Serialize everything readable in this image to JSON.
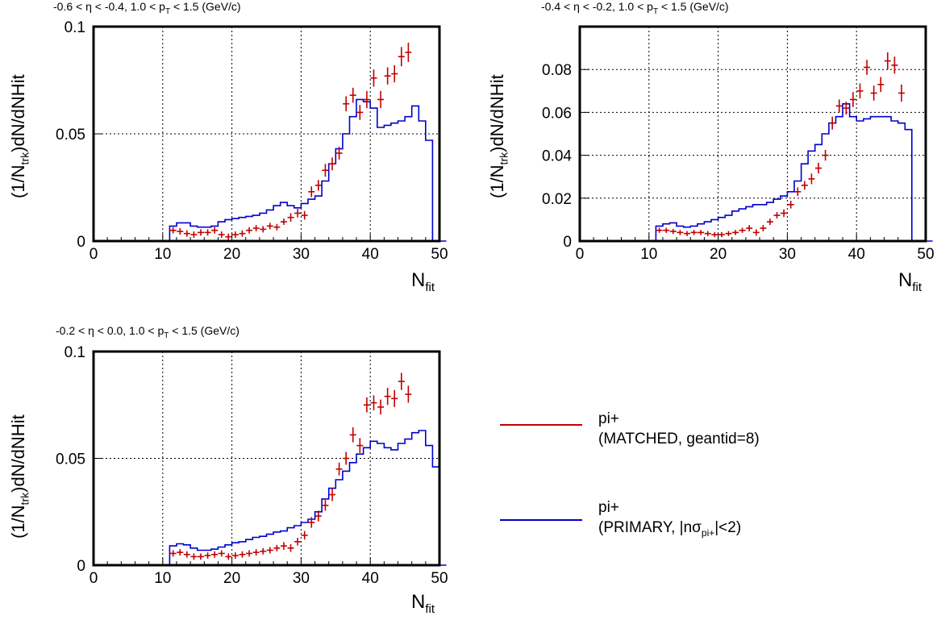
{
  "axis_labels": {
    "ylabel_pre": "(1/N",
    "ylabel_sub": "trk",
    "ylabel_post": ")dN/dNHit",
    "xlabel_main": "N",
    "xlabel_sub": "fit"
  },
  "legend": {
    "matched": {
      "line1": "pi+",
      "line2": "(MATCHED, geantid=8)",
      "color": "#c00000"
    },
    "primary": {
      "line1": "pi+",
      "line2_pre": "(PRIMARY, |nσ",
      "line2_sub": "pi+",
      "line2_post": "|<2)",
      "color": "#0000cc"
    }
  },
  "chart_data": [
    {
      "type": "histogram_with_points",
      "title_pre": "-0.6 < η < -0.4, 1.0 < p",
      "title_sub": "T",
      "title_post": " < 1.5 (GeV/c)",
      "xlim": [
        0,
        50
      ],
      "ylim": [
        0,
        0.1
      ],
      "xticks": [
        "0",
        "10",
        "20",
        "30",
        "40",
        "50"
      ],
      "yticks": [
        {
          "v": 0,
          "label": "0"
        },
        {
          "v": 0.05,
          "label": "0.05"
        },
        {
          "v": 0.1,
          "label": "0.1"
        }
      ],
      "grid": true,
      "primary_hist": [
        0,
        0,
        0,
        0,
        0,
        0,
        0,
        0,
        0,
        0,
        0,
        0.007,
        0.0085,
        0.0085,
        0.007,
        0.0065,
        0.0065,
        0.007,
        0.009,
        0.01,
        0.0105,
        0.011,
        0.0115,
        0.012,
        0.013,
        0.0145,
        0.0165,
        0.018,
        0.0165,
        0.0155,
        0.0175,
        0.0195,
        0.021,
        0.028,
        0.036,
        0.043,
        0.05,
        0.058,
        0.066,
        0.065,
        0.062,
        0.053,
        0.054,
        0.055,
        0.056,
        0.058,
        0.063,
        0.056,
        0.047,
        0,
        0
      ],
      "matched_points": [
        {
          "x": 12,
          "y": 0.005,
          "e": 0.0015
        },
        {
          "x": 13,
          "y": 0.0045,
          "e": 0.0015
        },
        {
          "x": 14,
          "y": 0.0035,
          "e": 0.0015
        },
        {
          "x": 15,
          "y": 0.003,
          "e": 0.0015
        },
        {
          "x": 16,
          "y": 0.004,
          "e": 0.0015
        },
        {
          "x": 17,
          "y": 0.004,
          "e": 0.0015
        },
        {
          "x": 18,
          "y": 0.005,
          "e": 0.0015
        },
        {
          "x": 19,
          "y": 0.003,
          "e": 0.0015
        },
        {
          "x": 20,
          "y": 0.002,
          "e": 0.0015
        },
        {
          "x": 21,
          "y": 0.003,
          "e": 0.0015
        },
        {
          "x": 22,
          "y": 0.0035,
          "e": 0.0015
        },
        {
          "x": 23,
          "y": 0.005,
          "e": 0.0015
        },
        {
          "x": 24,
          "y": 0.006,
          "e": 0.0015
        },
        {
          "x": 25,
          "y": 0.0055,
          "e": 0.0015
        },
        {
          "x": 26,
          "y": 0.007,
          "e": 0.0015
        },
        {
          "x": 27,
          "y": 0.0065,
          "e": 0.0015
        },
        {
          "x": 28,
          "y": 0.009,
          "e": 0.0015
        },
        {
          "x": 29,
          "y": 0.011,
          "e": 0.002
        },
        {
          "x": 30,
          "y": 0.013,
          "e": 0.002
        },
        {
          "x": 31,
          "y": 0.012,
          "e": 0.002
        },
        {
          "x": 32,
          "y": 0.023,
          "e": 0.0025
        },
        {
          "x": 33,
          "y": 0.026,
          "e": 0.0025
        },
        {
          "x": 34,
          "y": 0.033,
          "e": 0.003
        },
        {
          "x": 35,
          "y": 0.036,
          "e": 0.003
        },
        {
          "x": 36,
          "y": 0.041,
          "e": 0.003
        },
        {
          "x": 37,
          "y": 0.064,
          "e": 0.0035
        },
        {
          "x": 38,
          "y": 0.068,
          "e": 0.0035
        },
        {
          "x": 39,
          "y": 0.06,
          "e": 0.0035
        },
        {
          "x": 40,
          "y": 0.066,
          "e": 0.004
        },
        {
          "x": 41,
          "y": 0.076,
          "e": 0.004
        },
        {
          "x": 42,
          "y": 0.066,
          "e": 0.004
        },
        {
          "x": 43,
          "y": 0.077,
          "e": 0.004
        },
        {
          "x": 44,
          "y": 0.078,
          "e": 0.004
        },
        {
          "x": 45,
          "y": 0.086,
          "e": 0.0045
        },
        {
          "x": 46,
          "y": 0.088,
          "e": 0.0045
        }
      ]
    },
    {
      "type": "histogram_with_points",
      "title_pre": "-0.4 < η < -0.2, 1.0 < p",
      "title_sub": "T",
      "title_post": " < 1.5 (GeV/c)",
      "xlim": [
        0,
        50
      ],
      "ylim": [
        0,
        0.1
      ],
      "xticks": [
        "0",
        "10",
        "20",
        "30",
        "40",
        "50"
      ],
      "yticks": [
        {
          "v": 0,
          "label": "0"
        },
        {
          "v": 0.02,
          "label": "0.02"
        },
        {
          "v": 0.04,
          "label": "0.04"
        },
        {
          "v": 0.06,
          "label": "0.06"
        },
        {
          "v": 0.08,
          "label": "0.08"
        }
      ],
      "grid": true,
      "primary_hist": [
        0,
        0,
        0,
        0,
        0,
        0,
        0,
        0,
        0,
        0,
        0,
        0.007,
        0.008,
        0.0085,
        0.007,
        0.0065,
        0.007,
        0.008,
        0.009,
        0.01,
        0.011,
        0.012,
        0.014,
        0.015,
        0.016,
        0.017,
        0.017,
        0.018,
        0.0195,
        0.021,
        0.023,
        0.028,
        0.036,
        0.042,
        0.045,
        0.05,
        0.055,
        0.058,
        0.064,
        0.058,
        0.056,
        0.057,
        0.058,
        0.058,
        0.058,
        0.056,
        0.055,
        0.052,
        0,
        0,
        0
      ],
      "matched_points": [
        {
          "x": 12,
          "y": 0.005,
          "e": 0.0012
        },
        {
          "x": 13,
          "y": 0.005,
          "e": 0.0012
        },
        {
          "x": 14,
          "y": 0.0045,
          "e": 0.0012
        },
        {
          "x": 15,
          "y": 0.004,
          "e": 0.0012
        },
        {
          "x": 16,
          "y": 0.0035,
          "e": 0.0012
        },
        {
          "x": 17,
          "y": 0.004,
          "e": 0.0012
        },
        {
          "x": 18,
          "y": 0.004,
          "e": 0.0012
        },
        {
          "x": 19,
          "y": 0.0035,
          "e": 0.0012
        },
        {
          "x": 20,
          "y": 0.003,
          "e": 0.0012
        },
        {
          "x": 21,
          "y": 0.003,
          "e": 0.0012
        },
        {
          "x": 22,
          "y": 0.0035,
          "e": 0.0012
        },
        {
          "x": 23,
          "y": 0.004,
          "e": 0.0012
        },
        {
          "x": 24,
          "y": 0.005,
          "e": 0.0012
        },
        {
          "x": 25,
          "y": 0.006,
          "e": 0.0015
        },
        {
          "x": 26,
          "y": 0.004,
          "e": 0.0015
        },
        {
          "x": 27,
          "y": 0.006,
          "e": 0.0015
        },
        {
          "x": 28,
          "y": 0.009,
          "e": 0.0015
        },
        {
          "x": 29,
          "y": 0.012,
          "e": 0.0015
        },
        {
          "x": 30,
          "y": 0.013,
          "e": 0.0018
        },
        {
          "x": 31,
          "y": 0.017,
          "e": 0.0018
        },
        {
          "x": 32,
          "y": 0.023,
          "e": 0.002
        },
        {
          "x": 33,
          "y": 0.026,
          "e": 0.002
        },
        {
          "x": 34,
          "y": 0.029,
          "e": 0.0025
        },
        {
          "x": 35,
          "y": 0.034,
          "e": 0.0025
        },
        {
          "x": 36,
          "y": 0.04,
          "e": 0.0025
        },
        {
          "x": 37,
          "y": 0.055,
          "e": 0.003
        },
        {
          "x": 38,
          "y": 0.063,
          "e": 0.003
        },
        {
          "x": 39,
          "y": 0.062,
          "e": 0.003
        },
        {
          "x": 40,
          "y": 0.066,
          "e": 0.0035
        },
        {
          "x": 41,
          "y": 0.07,
          "e": 0.0035
        },
        {
          "x": 42,
          "y": 0.081,
          "e": 0.0035
        },
        {
          "x": 43,
          "y": 0.069,
          "e": 0.0035
        },
        {
          "x": 44,
          "y": 0.073,
          "e": 0.0035
        },
        {
          "x": 45,
          "y": 0.084,
          "e": 0.004
        },
        {
          "x": 46,
          "y": 0.082,
          "e": 0.004
        },
        {
          "x": 47,
          "y": 0.069,
          "e": 0.004
        }
      ]
    },
    {
      "type": "histogram_with_points",
      "title_pre": "-0.2 < η < 0.0, 1.0 < p",
      "title_sub": "T",
      "title_post": " < 1.5 (GeV/c)",
      "xlim": [
        0,
        50
      ],
      "ylim": [
        0,
        0.1
      ],
      "xticks": [
        "0",
        "10",
        "20",
        "30",
        "40",
        "50"
      ],
      "yticks": [
        {
          "v": 0,
          "label": "0"
        },
        {
          "v": 0.05,
          "label": "0.05"
        },
        {
          "v": 0.1,
          "label": "0.1"
        }
      ],
      "grid": true,
      "primary_hist": [
        0,
        0,
        0,
        0,
        0,
        0,
        0,
        0,
        0,
        0,
        0,
        0.009,
        0.01,
        0.0095,
        0.008,
        0.007,
        0.007,
        0.0075,
        0.0085,
        0.0095,
        0.0105,
        0.011,
        0.012,
        0.013,
        0.0135,
        0.0145,
        0.0155,
        0.016,
        0.0175,
        0.0185,
        0.02,
        0.0215,
        0.025,
        0.031,
        0.036,
        0.04,
        0.044,
        0.048,
        0.052,
        0.055,
        0.058,
        0.057,
        0.055,
        0.054,
        0.057,
        0.059,
        0.062,
        0.063,
        0.056,
        0.046,
        0
      ],
      "matched_points": [
        {
          "x": 12,
          "y": 0.0055,
          "e": 0.0015
        },
        {
          "x": 13,
          "y": 0.006,
          "e": 0.0015
        },
        {
          "x": 14,
          "y": 0.005,
          "e": 0.0015
        },
        {
          "x": 15,
          "y": 0.004,
          "e": 0.0015
        },
        {
          "x": 16,
          "y": 0.004,
          "e": 0.0015
        },
        {
          "x": 17,
          "y": 0.0045,
          "e": 0.0015
        },
        {
          "x": 18,
          "y": 0.005,
          "e": 0.0015
        },
        {
          "x": 19,
          "y": 0.0055,
          "e": 0.0015
        },
        {
          "x": 20,
          "y": 0.004,
          "e": 0.0015
        },
        {
          "x": 21,
          "y": 0.0045,
          "e": 0.0015
        },
        {
          "x": 22,
          "y": 0.005,
          "e": 0.0015
        },
        {
          "x": 23,
          "y": 0.0055,
          "e": 0.0015
        },
        {
          "x": 24,
          "y": 0.006,
          "e": 0.0015
        },
        {
          "x": 25,
          "y": 0.0065,
          "e": 0.0015
        },
        {
          "x": 26,
          "y": 0.007,
          "e": 0.0015
        },
        {
          "x": 27,
          "y": 0.008,
          "e": 0.0015
        },
        {
          "x": 28,
          "y": 0.009,
          "e": 0.0018
        },
        {
          "x": 29,
          "y": 0.008,
          "e": 0.0018
        },
        {
          "x": 30,
          "y": 0.011,
          "e": 0.0018
        },
        {
          "x": 31,
          "y": 0.014,
          "e": 0.002
        },
        {
          "x": 32,
          "y": 0.02,
          "e": 0.0025
        },
        {
          "x": 33,
          "y": 0.023,
          "e": 0.0025
        },
        {
          "x": 34,
          "y": 0.028,
          "e": 0.0025
        },
        {
          "x": 35,
          "y": 0.033,
          "e": 0.003
        },
        {
          "x": 36,
          "y": 0.045,
          "e": 0.003
        },
        {
          "x": 37,
          "y": 0.05,
          "e": 0.003
        },
        {
          "x": 38,
          "y": 0.061,
          "e": 0.0035
        },
        {
          "x": 39,
          "y": 0.056,
          "e": 0.0035
        },
        {
          "x": 40,
          "y": 0.075,
          "e": 0.0035
        },
        {
          "x": 41,
          "y": 0.076,
          "e": 0.0035
        },
        {
          "x": 42,
          "y": 0.074,
          "e": 0.0035
        },
        {
          "x": 43,
          "y": 0.079,
          "e": 0.004
        },
        {
          "x": 44,
          "y": 0.078,
          "e": 0.004
        },
        {
          "x": 45,
          "y": 0.086,
          "e": 0.004
        },
        {
          "x": 46,
          "y": 0.08,
          "e": 0.004
        }
      ]
    }
  ]
}
